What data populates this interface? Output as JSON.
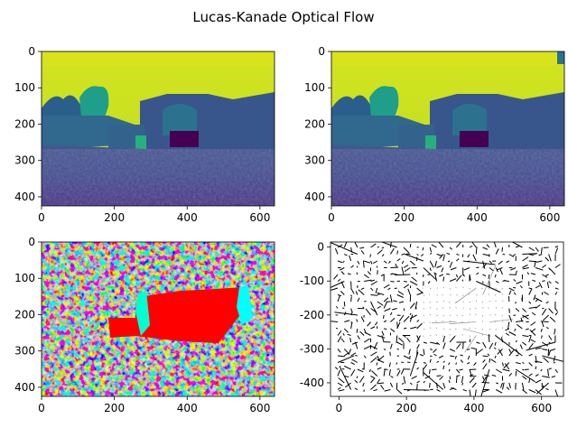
{
  "figure": {
    "title": "Lucas-Kanade Optical Flow"
  },
  "chart_data": [
    {
      "type": "heatmap",
      "panel": "frame-1",
      "colormap": "viridis",
      "content": "grayscale photo of stone gate ruin with trees, viridis colored",
      "xlim": [
        0,
        640
      ],
      "ylim": [
        425,
        0
      ],
      "xticks": [
        0,
        200,
        400,
        600
      ],
      "yticks": [
        0,
        100,
        200,
        300,
        400
      ]
    },
    {
      "type": "heatmap",
      "panel": "frame-2",
      "colormap": "viridis",
      "content": "second frame of the same scene, slightly shifted",
      "xlim": [
        0,
        640
      ],
      "ylim": [
        425,
        0
      ],
      "xticks": [
        0,
        200,
        400,
        600
      ],
      "yticks": [
        0,
        100,
        200,
        300,
        400
      ]
    },
    {
      "type": "heatmap",
      "panel": "flow-hsv",
      "colormap": "hsv",
      "content": "hue-encoded flow direction; large red region over the gate, cyan edges, noisy multicolor background",
      "xlim": [
        0,
        640
      ],
      "ylim": [
        425,
        0
      ],
      "xticks": [
        0,
        200,
        400,
        600
      ],
      "yticks": [
        0,
        100,
        200,
        300,
        400
      ]
    },
    {
      "type": "scatter",
      "panel": "flow-quiver",
      "content": "quiver plot of flow vectors on a grid",
      "xlim": [
        -25,
        665
      ],
      "ylim": [
        -440,
        15
      ],
      "xticks": [
        0,
        200,
        400,
        600
      ],
      "yticks": [
        0,
        -100,
        -200,
        -300,
        -400
      ]
    }
  ]
}
